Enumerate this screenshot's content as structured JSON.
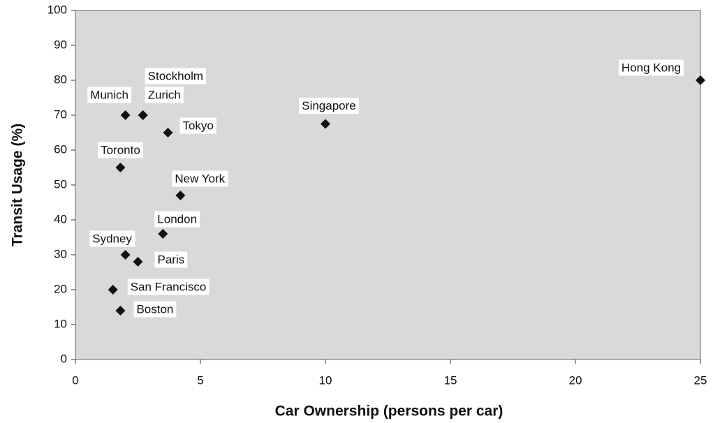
{
  "chart_data": {
    "type": "scatter",
    "x_label": "Car Ownership (persons per car)",
    "y_label": "Transit Usage (%)",
    "color": "#111111",
    "plot_background": "#d9d9d9",
    "points": [
      {
        "label": "Hong Kong",
        "x": 25,
        "y": 80
      },
      {
        "label": "Singapore",
        "x": 10,
        "y": 67.5
      },
      {
        "label": "Munich",
        "x": 2,
        "y": 70
      },
      {
        "label": "Stockholm",
        "x": 2.7,
        "y": 70
      },
      {
        "label": "Zurich",
        "x": 2.7,
        "y": 70
      },
      {
        "label": "Tokyo",
        "x": 3.7,
        "y": 65
      },
      {
        "label": "Toronto",
        "x": 1.8,
        "y": 55
      },
      {
        "label": "New York",
        "x": 4.2,
        "y": 47
      },
      {
        "label": "London",
        "x": 3.5,
        "y": 36
      },
      {
        "label": "Sydney",
        "x": 2,
        "y": 30
      },
      {
        "label": "Paris",
        "x": 2.5,
        "y": 28
      },
      {
        "label": "San Francisco",
        "x": 1.5,
        "y": 20
      },
      {
        "label": "Boston",
        "x": 1.8,
        "y": 14
      }
    ],
    "xlim": [
      0,
      25
    ],
    "xticks": [
      0,
      5,
      10,
      15,
      20,
      25
    ],
    "ylim": [
      0,
      100
    ],
    "yticks": [
      0,
      10,
      20,
      30,
      40,
      50,
      60,
      70,
      80,
      90,
      100
    ]
  }
}
